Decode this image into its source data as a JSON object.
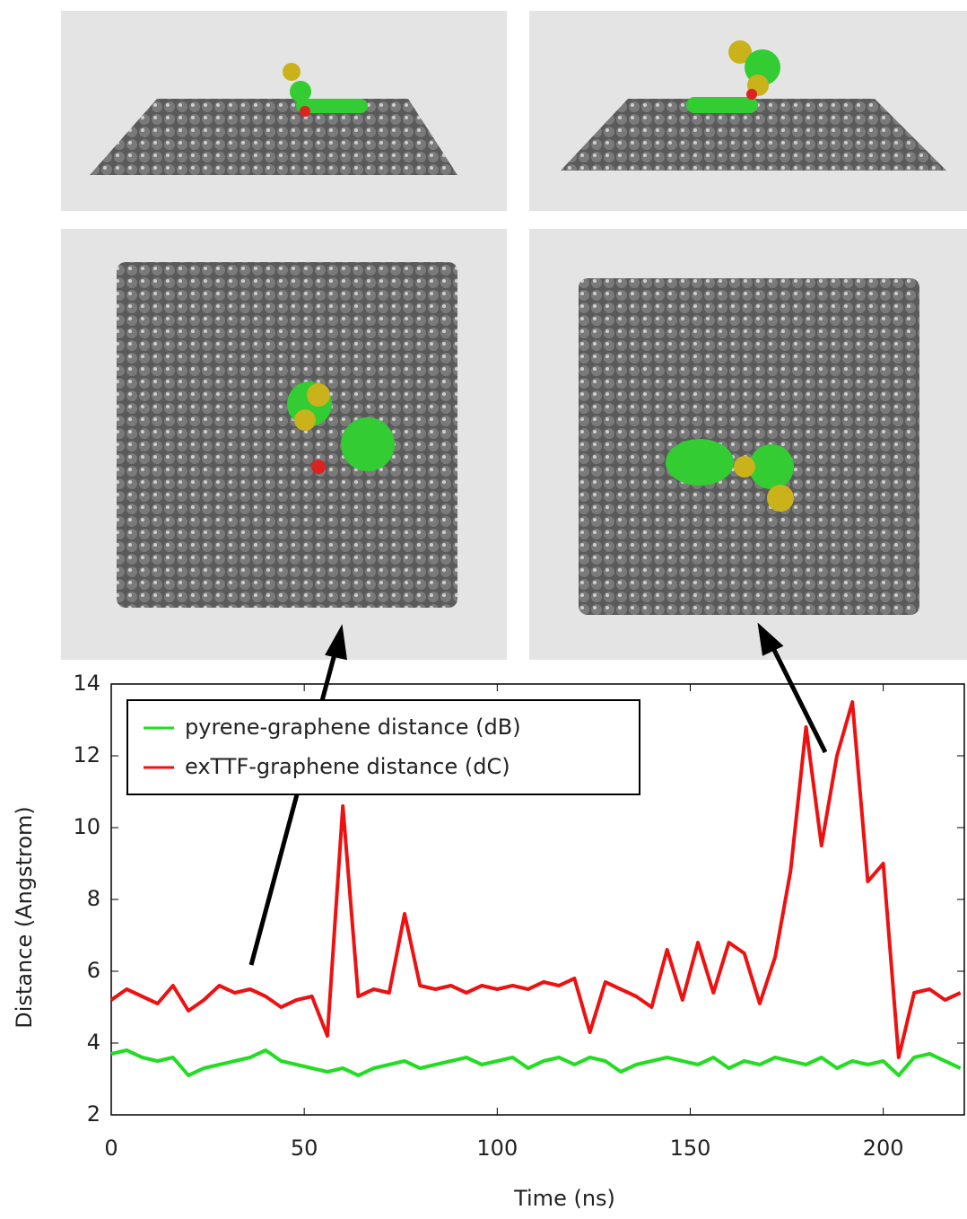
{
  "chart_data": {
    "type": "line",
    "xlabel": "Time (ns)",
    "ylabel": "Distance (Angstrom)",
    "x": [
      0,
      4,
      8,
      12,
      16,
      20,
      24,
      28,
      32,
      36,
      40,
      44,
      48,
      52,
      56,
      60,
      64,
      68,
      72,
      76,
      80,
      84,
      88,
      92,
      96,
      100,
      104,
      108,
      112,
      116,
      120,
      124,
      128,
      132,
      136,
      140,
      144,
      148,
      152,
      156,
      160,
      164,
      168,
      172,
      176,
      180,
      184,
      188,
      192,
      196,
      200,
      204,
      208,
      212,
      216,
      220
    ],
    "series": [
      {
        "name": "pyrene-graphene distance (dB)",
        "color": "#22dd22",
        "values": [
          3.7,
          3.8,
          3.6,
          3.5,
          3.6,
          3.1,
          3.3,
          3.4,
          3.5,
          3.6,
          3.8,
          3.5,
          3.4,
          3.3,
          3.2,
          3.3,
          3.1,
          3.3,
          3.4,
          3.5,
          3.3,
          3.4,
          3.5,
          3.6,
          3.4,
          3.5,
          3.6,
          3.3,
          3.5,
          3.6,
          3.4,
          3.6,
          3.5,
          3.2,
          3.4,
          3.5,
          3.6,
          3.5,
          3.4,
          3.6,
          3.3,
          3.5,
          3.4,
          3.6,
          3.5,
          3.4,
          3.6,
          3.3,
          3.5,
          3.4,
          3.5,
          3.1,
          3.6,
          3.7,
          3.5,
          3.3
        ]
      },
      {
        "name": "exTTF-graphene distance (dC)",
        "color": "#ee1111",
        "values": [
          5.2,
          5.5,
          5.3,
          5.1,
          5.6,
          4.9,
          5.2,
          5.6,
          5.4,
          5.5,
          5.3,
          5.0,
          5.2,
          5.3,
          4.2,
          10.6,
          5.3,
          5.5,
          5.4,
          7.6,
          5.6,
          5.5,
          5.6,
          5.4,
          5.6,
          5.5,
          5.6,
          5.5,
          5.7,
          5.6,
          5.8,
          4.3,
          5.7,
          5.5,
          5.3,
          5.0,
          6.6,
          5.2,
          6.8,
          5.4,
          6.8,
          6.5,
          5.1,
          6.4,
          8.8,
          12.8,
          9.5,
          12.0,
          13.5,
          8.5,
          9.0,
          3.6,
          5.4,
          5.5,
          5.2,
          5.4
        ]
      }
    ],
    "xlim": [
      0,
      221
    ],
    "ylim": [
      2,
      14
    ],
    "xticks": [
      0,
      50,
      100,
      150,
      200
    ],
    "yticks": [
      2,
      4,
      6,
      8,
      10,
      12,
      14
    ],
    "legend": "upper-left"
  }
}
